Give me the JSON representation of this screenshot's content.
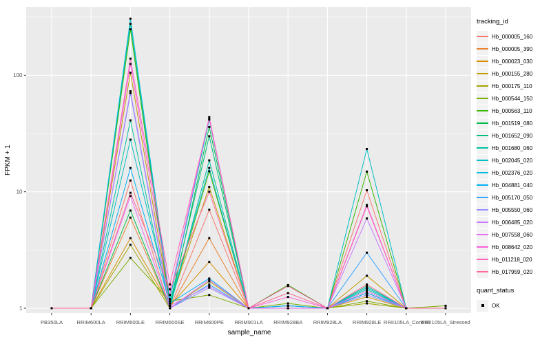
{
  "figure": {
    "bg": "#FFFFFF",
    "panel_bg": "#EBEBEB",
    "grid_color": "#FFFFFF",
    "tick_color": "#333333",
    "tick_text_color": "#4D4D4D",
    "point_color": "#000000"
  },
  "legend": {
    "tracking_title": "tracking_id",
    "quant_title": "quant_status",
    "quant_items": [
      {
        "label": "OK",
        "shape": "square",
        "color": "#000000"
      }
    ],
    "key_bg": "#F2F2F2"
  },
  "chart_data": {
    "type": "line",
    "title": "",
    "xlabel": "sample_name",
    "ylabel": "FPKM + 1",
    "y_scale": "log10",
    "y_ticks": [
      1,
      10,
      100
    ],
    "y_minor_ticks": [
      3.16,
      31.6,
      316
    ],
    "ylim": [
      0.95,
      390
    ],
    "grid": true,
    "legend_position": "right",
    "point_shape": "square",
    "categories": [
      "PB350LA",
      "RRIM600LA",
      "RRIM600LE",
      "RRIM600SE",
      "RRIM600PE",
      "RRIM901LA",
      "RRIM928BA",
      "RRIM928LA",
      "RRIM928LE",
      "RRII105LA_Control",
      "RRII105LA_Stressed"
    ],
    "series": [
      {
        "name": "Hb_000005_160",
        "color": "#F8766D",
        "values": [
          1,
          1,
          12.5,
          1,
          7,
          1,
          1,
          1,
          10.3,
          1,
          1
        ]
      },
      {
        "name": "Hb_000005_390",
        "color": "#EA8331",
        "values": [
          1,
          1,
          6,
          1,
          4,
          1,
          1,
          1,
          1.35,
          1,
          1
        ]
      },
      {
        "name": "Hb_000023_030",
        "color": "#D89000",
        "values": [
          1,
          1,
          4,
          1.05,
          2.5,
          1,
          1,
          1,
          1.25,
          1,
          1
        ]
      },
      {
        "name": "Hb_000155_280",
        "color": "#C09B00",
        "values": [
          1,
          1,
          105,
          1.1,
          11,
          1,
          1.05,
          1,
          1.9,
          1,
          1
        ]
      },
      {
        "name": "Hb_000175_110",
        "color": "#A3A500",
        "values": [
          1,
          1,
          3.5,
          1,
          1.7,
          1,
          1,
          1,
          1.1,
          1,
          1
        ]
      },
      {
        "name": "Hb_000544_150",
        "color": "#7CAE00",
        "values": [
          1,
          1,
          2.7,
          1.15,
          1.3,
          1,
          1.1,
          1,
          1.15,
          1,
          1.05
        ]
      },
      {
        "name": "Hb_000563_110",
        "color": "#39B600",
        "values": [
          1,
          1,
          248,
          1.05,
          15,
          1,
          1.58,
          1,
          14.9,
          1,
          1
        ]
      },
      {
        "name": "Hb_001519_080",
        "color": "#00BB4E",
        "values": [
          1,
          1,
          6.9,
          1,
          36,
          1,
          1,
          1,
          1.5,
          1,
          1
        ]
      },
      {
        "name": "Hb_001652_090",
        "color": "#00BF7D",
        "values": [
          1,
          1,
          277,
          1.1,
          30,
          1,
          1,
          1,
          1.55,
          1,
          1
        ]
      },
      {
        "name": "Hb_001680_060",
        "color": "#00C1A3",
        "values": [
          1,
          1,
          41,
          1,
          18.6,
          1,
          1,
          1,
          1.45,
          1,
          1
        ]
      },
      {
        "name": "Hb_002045_020",
        "color": "#00BFC4",
        "values": [
          1,
          1,
          28,
          1.1,
          16,
          1,
          1.05,
          1,
          23.3,
          1,
          1
        ]
      },
      {
        "name": "Hb_002376_020",
        "color": "#00BAE0",
        "values": [
          1,
          1,
          306,
          1.2,
          41.6,
          1,
          1,
          1,
          1.5,
          1,
          1
        ]
      },
      {
        "name": "Hb_004881_040",
        "color": "#00B0F6",
        "values": [
          1,
          1,
          16,
          1.1,
          1.8,
          1,
          1.05,
          1,
          1.35,
          1,
          1
        ]
      },
      {
        "name": "Hb_005170_050",
        "color": "#35A2FF",
        "values": [
          1,
          1,
          70,
          1,
          1.6,
          1,
          1,
          1,
          3,
          1,
          1
        ]
      },
      {
        "name": "Hb_005550_060",
        "color": "#9590FF",
        "values": [
          1,
          1,
          72,
          1,
          1.5,
          1,
          1,
          1,
          1.3,
          1,
          1
        ]
      },
      {
        "name": "Hb_006485_020",
        "color": "#C77CFF",
        "values": [
          1,
          1,
          73,
          1.05,
          1.55,
          1,
          1,
          1,
          5.9,
          1,
          1
        ]
      },
      {
        "name": "Hb_007558_060",
        "color": "#E76BF3",
        "values": [
          1,
          1,
          9.2,
          1,
          1.75,
          1,
          1,
          1,
          1.4,
          1,
          1
        ]
      },
      {
        "name": "Hb_008642_020",
        "color": "#FA62DB",
        "values": [
          1,
          1,
          125,
          1.3,
          43.7,
          1,
          1.25,
          1,
          7.7,
          1,
          1
        ]
      },
      {
        "name": "Hb_011218_020",
        "color": "#FF62BC",
        "values": [
          1,
          1,
          139,
          1.6,
          42.5,
          1,
          1.55,
          1,
          7.5,
          1,
          1
        ]
      },
      {
        "name": "Hb_017959_020",
        "color": "#FF6A98",
        "values": [
          1,
          1,
          9.8,
          1.45,
          10,
          1,
          1.35,
          1,
          1.6,
          1,
          1
        ]
      }
    ]
  }
}
